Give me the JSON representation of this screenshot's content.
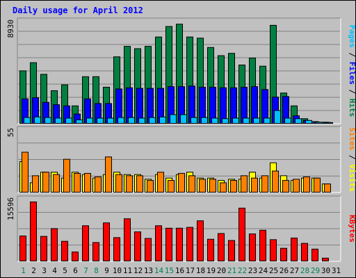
{
  "chart_data": {
    "type": "bar",
    "title": "Daily usage for April 2012",
    "days": [
      "1",
      "2",
      "3",
      "4",
      "5",
      "6",
      "7",
      "8",
      "9",
      "10",
      "11",
      "12",
      "13",
      "14",
      "15",
      "16",
      "17",
      "18",
      "19",
      "20",
      "21",
      "22",
      "23",
      "24",
      "25",
      "26",
      "27",
      "28",
      "29",
      "30",
      "31"
    ],
    "weekend_days": [
      "1",
      "7",
      "8",
      "14",
      "15",
      "21",
      "22",
      "28",
      "29"
    ],
    "panels": [
      {
        "id": "pages-files-hits",
        "max_label": "8930",
        "ymax": 8930,
        "legend": [
          {
            "text": "Pages",
            "color": "#00c0ff"
          },
          {
            "text": "Files",
            "color": "#0000ff"
          },
          {
            "text": "Hits",
            "color": "#008040"
          }
        ],
        "series": [
          {
            "name": "Hits",
            "color": "#008040",
            "values": [
              4500,
              5200,
              4200,
              2800,
              3300,
              1500,
              4000,
              4000,
              3100,
              5700,
              6600,
              6400,
              6600,
              7400,
              8300,
              8500,
              7400,
              7300,
              6500,
              5800,
              6000,
              5000,
              5600,
              4900,
              8400,
              2600,
              1500,
              400,
              150,
              100,
              0
            ]
          },
          {
            "name": "Files",
            "color": "#0000ff",
            "values": [
              2100,
              2200,
              1800,
              1600,
              1500,
              800,
              2100,
              1700,
              1700,
              2950,
              3050,
              3000,
              3000,
              3000,
              3150,
              3150,
              3200,
              3100,
              3100,
              3050,
              3050,
              3100,
              3150,
              2900,
              2250,
              2300,
              650,
              250,
              120,
              80,
              0
            ]
          },
          {
            "name": "Pages",
            "color": "#00c0ff",
            "values": [
              500,
              550,
              500,
              450,
              450,
              300,
              450,
              450,
              450,
              500,
              500,
              450,
              500,
              550,
              750,
              750,
              500,
              500,
              450,
              400,
              450,
              450,
              450,
              450,
              1100,
              450,
              400,
              250,
              100,
              70,
              0
            ]
          }
        ]
      },
      {
        "id": "visits-sites",
        "max_label": "55",
        "ymax": 55,
        "legend": [
          {
            "text": "Sites",
            "color": "#ff8000"
          },
          {
            "text": "Visits",
            "color": "#ffff00"
          }
        ],
        "series": [
          {
            "name": "Visits",
            "color": "#ffff00",
            "values": [
              26,
              8,
              17,
              17,
              12,
              17,
              15,
              12,
              15,
              17,
              15,
              15,
              11,
              15,
              12,
              15,
              17,
              12,
              12,
              10,
              11,
              11,
              17,
              12,
              25,
              14,
              10,
              12,
              12,
              7,
              0
            ]
          },
          {
            "name": "Sites",
            "color": "#ff8000",
            "values": [
              34,
              14,
              17,
              15,
              28,
              16,
              16,
              13,
              30,
              15,
              14,
              14,
              10,
              17,
              10,
              16,
              14,
              11,
              11,
              8,
              10,
              14,
              12,
              14,
              18,
              10,
              11,
              13,
              12,
              7,
              0
            ]
          }
        ]
      },
      {
        "id": "kbytes",
        "max_label": "15596",
        "ymax": 15596,
        "legend": [
          {
            "text": "KBytes",
            "color": "#ff0000"
          }
        ],
        "series": [
          {
            "name": "KBytes",
            "color": "#ff0000",
            "values": [
              6100,
              14400,
              6000,
              7900,
              4800,
              2200,
              8600,
              4500,
              9300,
              5700,
              10300,
              7100,
              5500,
              8600,
              8000,
              8000,
              8200,
              9800,
              5300,
              6700,
              5000,
              12900,
              6600,
              7500,
              5200,
              3100,
              5600,
              4300,
              2900,
              700,
              0
            ]
          }
        ]
      }
    ]
  }
}
